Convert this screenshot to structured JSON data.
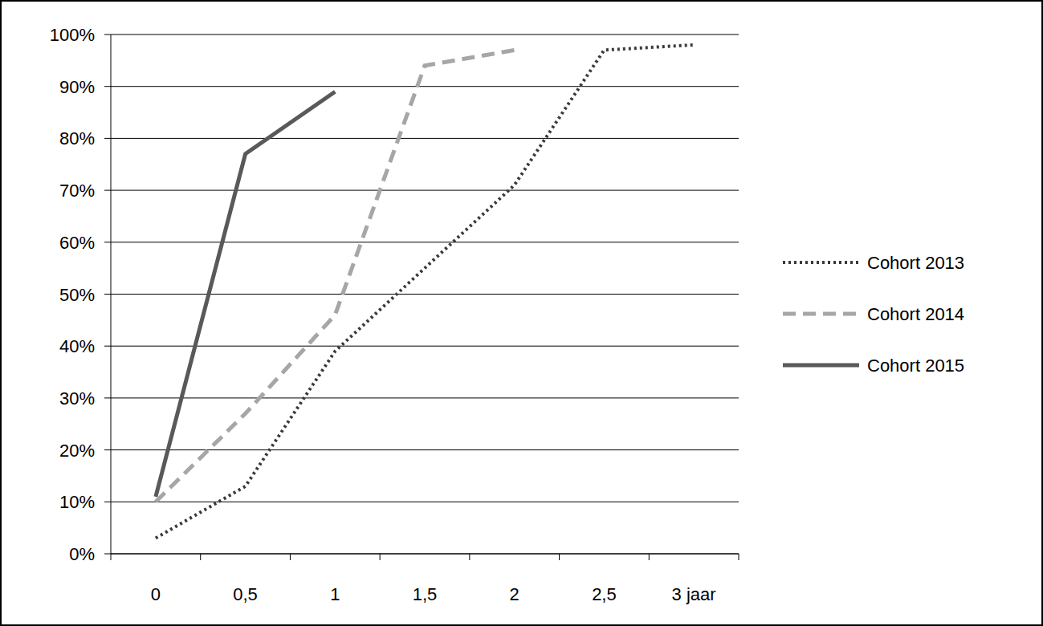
{
  "chart_data": {
    "type": "line",
    "categories": [
      "0",
      "0,5",
      "1",
      "1,5",
      "2",
      "2,5",
      "3 jaar"
    ],
    "series": [
      {
        "name": "Cohort 2013",
        "color": "#3a3a3a",
        "line_style": "dotted",
        "values": [
          3,
          13,
          39,
          55,
          71,
          97,
          98
        ]
      },
      {
        "name": "Cohort 2014",
        "color": "#a6a6a6",
        "line_style": "dashed",
        "values": [
          10,
          27,
          46,
          94,
          97,
          null,
          null
        ]
      },
      {
        "name": "Cohort 2015",
        "color": "#595959",
        "line_style": "solid",
        "values": [
          11,
          77,
          89,
          null,
          null,
          null,
          null
        ]
      }
    ],
    "ylim": [
      0,
      100
    ],
    "yticks": [
      {
        "value": 0,
        "label": "0%"
      },
      {
        "value": 10,
        "label": "10%"
      },
      {
        "value": 20,
        "label": "20%"
      },
      {
        "value": 30,
        "label": "30%"
      },
      {
        "value": 40,
        "label": "40%"
      },
      {
        "value": 50,
        "label": "50%"
      },
      {
        "value": 60,
        "label": "60%"
      },
      {
        "value": 70,
        "label": "70%"
      },
      {
        "value": 80,
        "label": "80%"
      },
      {
        "value": 90,
        "label": "90%"
      },
      {
        "value": 100,
        "label": "100%"
      }
    ],
    "grid": true,
    "legend": "right"
  }
}
